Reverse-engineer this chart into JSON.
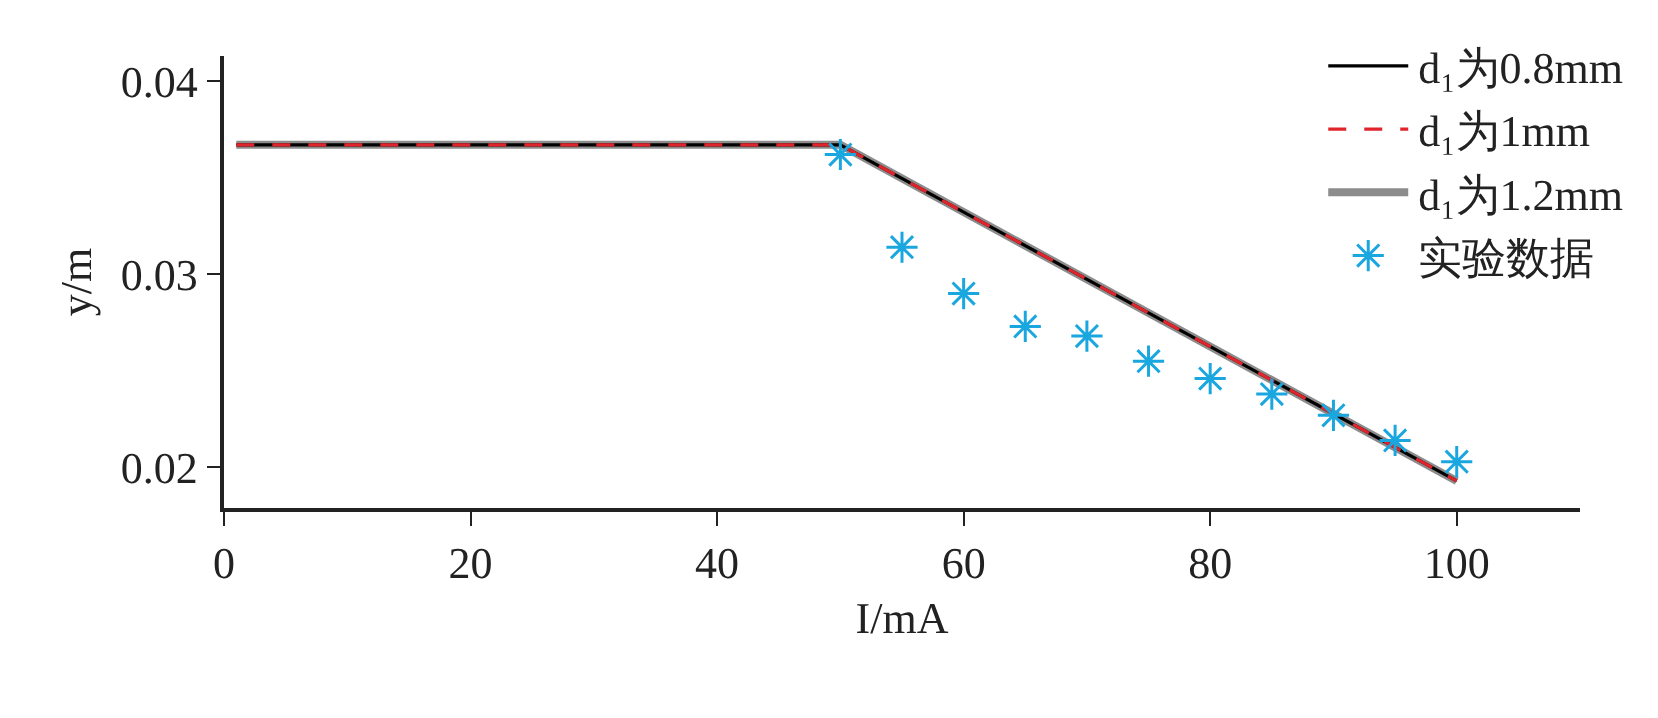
{
  "chart_data": {
    "type": "line",
    "xlabel": "I/mA",
    "ylabel": "y/m",
    "xlim": [
      0,
      110
    ],
    "xticks": [
      0,
      20,
      40,
      60,
      80,
      100
    ],
    "ylim": [
      0.0179,
      0.0413
    ],
    "yticks": [
      0.02,
      0.03,
      0.04
    ],
    "grid": false,
    "legend": "top right",
    "series": [
      {
        "name": "d₁为0.8mm",
        "type": "line",
        "color": "#000000",
        "line_style": "solid",
        "marker": "none",
        "x": [
          1,
          50,
          100
        ],
        "values": [
          0.0367,
          0.0367,
          0.0193
        ]
      },
      {
        "name": "d₁为1mm",
        "type": "line",
        "color": "#e0242b",
        "line_style": "dashed",
        "marker": "none",
        "x": [
          1,
          50,
          100
        ],
        "values": [
          0.0367,
          0.0367,
          0.0193
        ]
      },
      {
        "name": "d₁为1.2mm",
        "type": "line",
        "color": "#8c8c8c",
        "line_style": "solid",
        "marker": "none",
        "x": [
          1,
          50,
          100
        ],
        "values": [
          0.0367,
          0.0367,
          0.0193
        ]
      },
      {
        "name": "实验数据",
        "type": "scatter",
        "color": "#1aa7e0",
        "marker": "cross",
        "x": [
          50,
          55,
          60,
          65,
          70,
          75,
          80,
          85,
          90,
          95,
          100
        ],
        "values": [
          0.0362,
          0.0314,
          0.029,
          0.0273,
          0.0268,
          0.0255,
          0.0246,
          0.0238,
          0.0227,
          0.0214,
          0.0203
        ]
      }
    ]
  }
}
